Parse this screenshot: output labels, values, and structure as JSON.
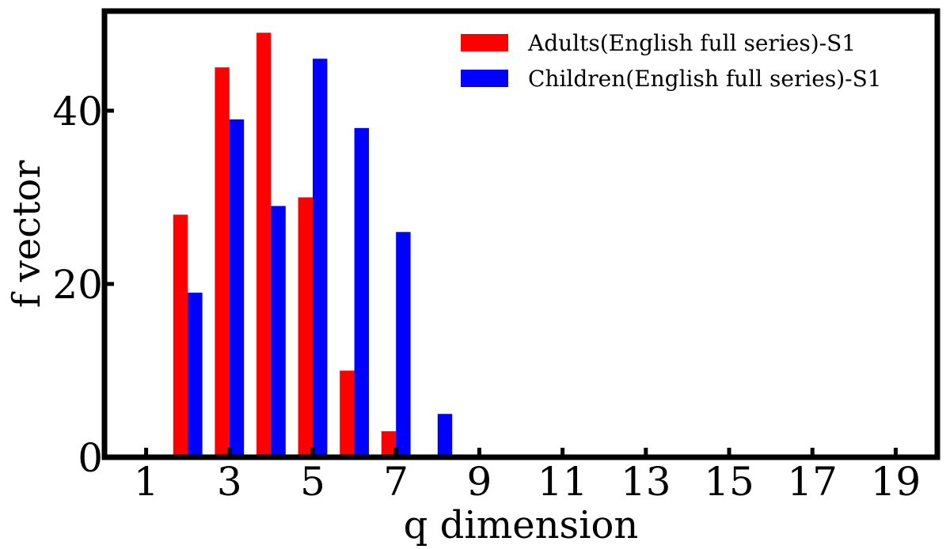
{
  "chart_data": {
    "type": "bar",
    "xlabel": "q dimension",
    "ylabel": "f vector",
    "xlim": [
      0.0,
      20.0
    ],
    "ylim": [
      0,
      51.5
    ],
    "xticks": [
      1,
      3,
      5,
      7,
      9,
      11,
      13,
      15,
      17,
      19
    ],
    "yticks": [
      0,
      20,
      40
    ],
    "x": [
      1,
      2,
      3,
      4,
      5,
      6,
      7,
      8,
      9,
      10,
      11,
      12,
      13,
      14,
      15,
      16,
      17,
      18,
      19
    ],
    "series": [
      {
        "name": "Adults(English full series)-S1",
        "color": "#ff0000",
        "values": [
          0,
          28,
          45,
          49,
          30,
          10,
          3,
          0,
          0,
          0,
          0,
          0,
          0,
          0,
          0,
          0,
          0,
          0,
          0
        ]
      },
      {
        "name": "Children(English full series)-S1",
        "color": "#0000ff",
        "values": [
          0,
          19,
          39,
          29,
          46,
          38,
          26,
          5,
          0,
          0,
          0,
          0,
          0,
          0,
          0,
          0,
          0,
          0,
          0
        ]
      }
    ],
    "grid": false,
    "legend": "top-right"
  }
}
